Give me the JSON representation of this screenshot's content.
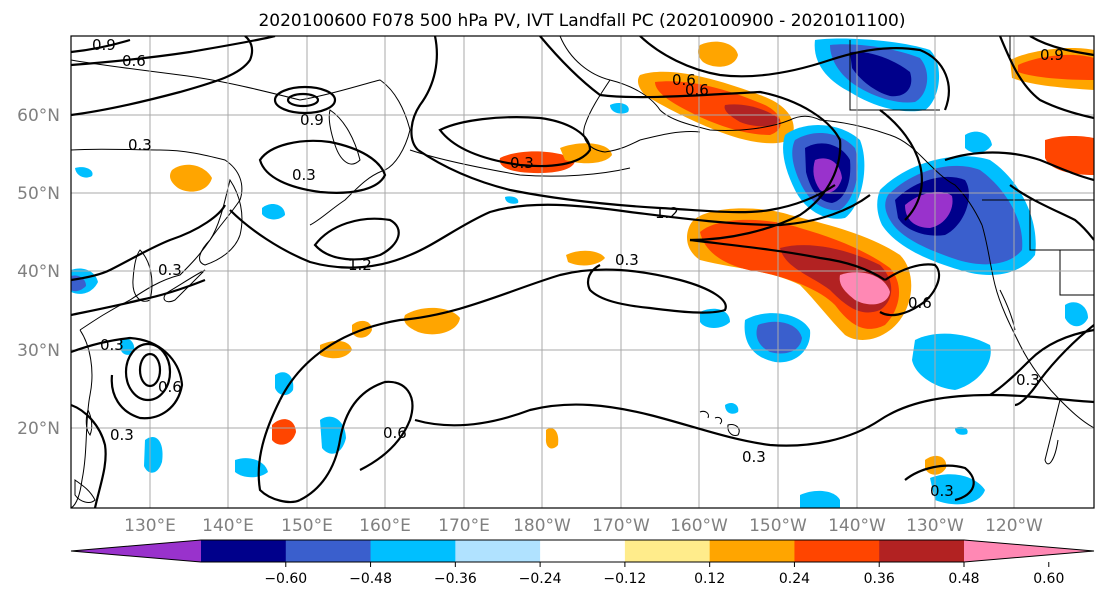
{
  "title": "2020100600 F078 500 hPa PV, IVT Landfall PC (2020100900 - 2020101100)",
  "lat_labels": [
    "60°N",
    "50°N",
    "40°N",
    "30°N",
    "20°N"
  ],
  "lon_labels": [
    "130°E",
    "140°E",
    "150°E",
    "160°E",
    "170°E",
    "180°W",
    "170°W",
    "160°W",
    "150°W",
    "140°W",
    "130°W",
    "120°W"
  ],
  "colorbar": {
    "colors": [
      "#9932cc",
      "#00008b",
      "#3a5fcd",
      "#00bfff",
      "#b0e2ff",
      "#ffffff",
      "#ffec8b",
      "#ffa500",
      "#ff4500",
      "#b22222",
      "#ff88b4"
    ],
    "tick_labels": [
      "−0.60",
      "−0.48",
      "−0.36",
      "−0.24",
      "−0.12",
      "0.12",
      "0.24",
      "0.36",
      "0.48",
      "0.60"
    ]
  },
  "contour_labels": {
    "l1": "0.9",
    "l2": "0.6",
    "l3": "0.3",
    "l4": "0.9",
    "l5": "0.3",
    "l6": "0.3",
    "l7": "1.2",
    "l8": "0.3",
    "l9": "1.2",
    "l10": "0.6",
    "l11": "0.6",
    "l12": "0.3",
    "l13": "0.3",
    "l14": "0.6",
    "l15": "0.3",
    "l16": "0.3",
    "l17": "0.6",
    "l18": "0.6",
    "l19": "0.9",
    "l20": "0.3",
    "l21": "0.3"
  }
}
